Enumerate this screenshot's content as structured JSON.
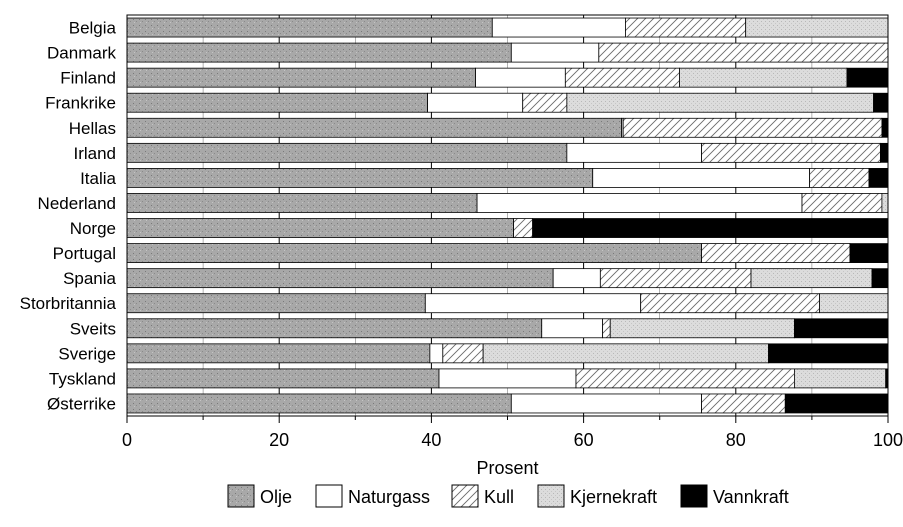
{
  "chart_data": {
    "type": "bar",
    "orientation": "horizontal",
    "stacked": true,
    "categories": [
      "Belgia",
      "Danmark",
      "Finland",
      "Frankrike",
      "Hellas",
      "Irland",
      "Italia",
      "Nederland",
      "Norge",
      "Portugal",
      "Spania",
      "Storbritannia",
      "Sveits",
      "Sverige",
      "Tyskland",
      "Østerrike"
    ],
    "series": [
      {
        "name": "Olje",
        "values": [
          48,
          50.5,
          45.8,
          39.5,
          65,
          57.8,
          61.2,
          46,
          50.8,
          75.5,
          56,
          39.2,
          54.5,
          39.8,
          41,
          50.5
        ]
      },
      {
        "name": "Naturgass",
        "values": [
          17.5,
          11.5,
          11.8,
          12.5,
          0.2,
          17.7,
          28.5,
          42.7,
          0,
          0,
          6.2,
          28.3,
          8,
          1.7,
          18,
          25
        ]
      },
      {
        "name": "Kull",
        "values": [
          15.8,
          38,
          15,
          5.8,
          34,
          23.5,
          7.8,
          10.5,
          2.5,
          19.5,
          19.8,
          23.5,
          1,
          5.3,
          28.7,
          11
        ]
      },
      {
        "name": "Kjernekraft",
        "values": [
          18.7,
          0,
          22,
          40.3,
          0,
          0,
          0,
          0.8,
          0,
          0,
          15.9,
          9,
          24.2,
          37.5,
          12,
          0
        ]
      },
      {
        "name": "Vannkraft",
        "values": [
          0,
          0,
          5.4,
          1.9,
          0.8,
          1,
          2.5,
          0,
          46.7,
          5,
          2.1,
          0,
          12.3,
          15.7,
          0.3,
          13.5
        ]
      }
    ],
    "xlabel": "Prosent",
    "xlim": [
      0,
      100
    ],
    "xticks": [
      0,
      20,
      40,
      60,
      80,
      100
    ],
    "grid": true,
    "legend_position": "bottom",
    "colors": {
      "Olje": "#a8a8a8",
      "Naturgass": "#ffffff",
      "Kull": "#ffffff",
      "Kjernekraft": "#d6d6d6",
      "Vannkraft": "#000000"
    }
  }
}
